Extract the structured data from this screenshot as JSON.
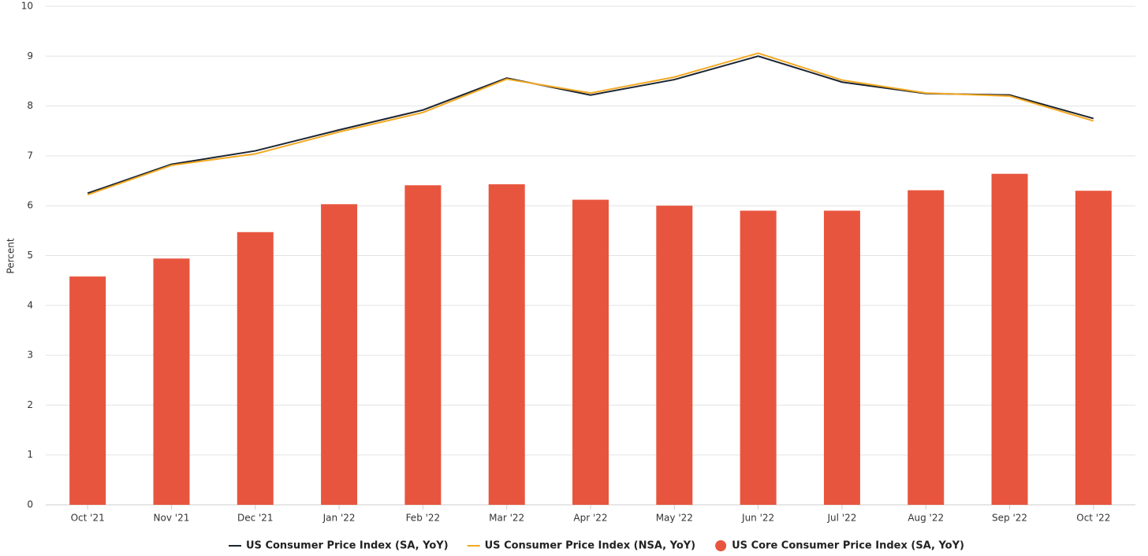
{
  "chart_data": {
    "type": "combo",
    "y_label": "Percent",
    "categories": [
      "Oct '21",
      "Nov '21",
      "Dec '21",
      "Jan '22",
      "Feb '22",
      "Mar '22",
      "Apr '22",
      "May '22",
      "Jun '22",
      "Jul '22",
      "Aug '22",
      "Sep '22",
      "Oct '22"
    ],
    "series": [
      {
        "name": "US Core Consumer Price Index (SA, YoY)",
        "type": "bar",
        "color": "#e8553e",
        "values": [
          4.58,
          4.94,
          5.47,
          6.03,
          6.41,
          6.43,
          6.12,
          6.0,
          5.9,
          5.9,
          6.31,
          6.64,
          6.3
        ]
      },
      {
        "name": "US Consumer Price Index (SA, YoY)",
        "type": "line",
        "color": "#1b2431",
        "values": [
          6.25,
          6.83,
          7.1,
          7.52,
          7.92,
          8.56,
          8.22,
          8.53,
          9.0,
          8.48,
          8.25,
          8.22,
          7.75
        ]
      },
      {
        "name": "US Consumer Price Index (NSA, YoY)",
        "type": "line",
        "color": "#f2a922",
        "values": [
          6.22,
          6.81,
          7.04,
          7.48,
          7.87,
          8.54,
          8.26,
          8.58,
          9.06,
          8.52,
          8.26,
          8.2,
          7.7
        ]
      }
    ],
    "legend_order": [
      1,
      2,
      0
    ],
    "ylim": [
      0,
      10
    ],
    "yticks": [
      0,
      1,
      2,
      3,
      4,
      5,
      6,
      7,
      8,
      9,
      10
    ],
    "grid": true
  }
}
